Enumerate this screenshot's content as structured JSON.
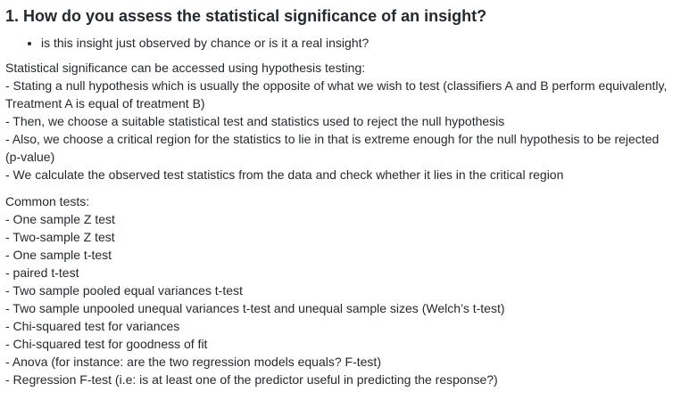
{
  "question": {
    "title": "1. How do you assess the statistical significance of an insight?",
    "bullets": [
      "is this insight just observed by chance or is it a real insight?"
    ]
  },
  "answer": {
    "intro": "Statistical significance can be accessed using hypothesis testing:",
    "steps": [
      "- Stating a null hypothesis which is usually the opposite of what we wish to test (classifiers A and B perform equivalently, Treatment A is equal of treatment B)",
      "- Then, we choose a suitable statistical test and statistics used to reject the null hypothesis",
      "- Also, we choose a critical region for the statistics to lie in that is extreme enough for the null hypothesis to be rejected (p-value)",
      "- We calculate the observed test statistics from the data and check whether it lies in the critical region"
    ]
  },
  "tests": {
    "heading": "Common tests:",
    "items": [
      "- One sample Z test",
      "- Two-sample Z test",
      "- One sample t-test",
      "- paired t-test",
      "- Two sample pooled equal variances t-test",
      "- Two sample unpooled unequal variances t-test and unequal sample sizes (Welch’s t-test)",
      "- Chi-squared test for variances",
      "- Chi-squared test for goodness of fit",
      "- Anova (for instance: are the two regression models equals? F-test)",
      "- Regression F-test (i.e: is at least one of the predictor useful in predicting the response?)"
    ]
  }
}
